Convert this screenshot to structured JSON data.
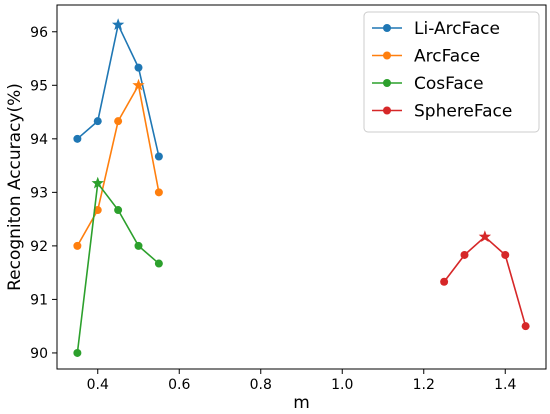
{
  "chart_data": {
    "type": "line",
    "title": "",
    "xlabel": "m",
    "ylabel": "Recogniton Accuracy(%)",
    "xlim": [
      0.3,
      1.5
    ],
    "ylim": [
      89.7,
      96.5
    ],
    "xticks": [
      0.4,
      0.6,
      0.8,
      1.0,
      1.2,
      1.4
    ],
    "xtick_labels": [
      "0.4",
      "0.6",
      "0.8",
      "1.0",
      "1.2",
      "1.4"
    ],
    "yticks": [
      90,
      91,
      92,
      93,
      94,
      95,
      96
    ],
    "ytick_labels": [
      "90",
      "91",
      "92",
      "93",
      "94",
      "95",
      "96"
    ],
    "grid": false,
    "legend_position": "top-right",
    "series": [
      {
        "name": "Li-ArcFace",
        "color": "#1f77b4",
        "x": [
          0.35,
          0.4,
          0.45,
          0.5,
          0.55
        ],
        "y": [
          94.0,
          94.33,
          96.13,
          95.33,
          93.67
        ],
        "best_index": 2
      },
      {
        "name": "ArcFace",
        "color": "#ff7f0e",
        "x": [
          0.35,
          0.4,
          0.45,
          0.5,
          0.55
        ],
        "y": [
          92.0,
          92.67,
          94.33,
          95.0,
          93.0
        ],
        "best_index": 3
      },
      {
        "name": "CosFace",
        "color": "#2ca02c",
        "x": [
          0.35,
          0.4,
          0.45,
          0.5,
          0.55
        ],
        "y": [
          90.0,
          93.17,
          92.67,
          92.0,
          91.67
        ],
        "best_index": 1
      },
      {
        "name": "SphereFace",
        "color": "#d62728",
        "x": [
          1.25,
          1.3,
          1.35,
          1.4,
          1.45
        ],
        "y": [
          91.33,
          91.83,
          92.17,
          91.83,
          90.5
        ],
        "best_index": 2
      }
    ]
  }
}
